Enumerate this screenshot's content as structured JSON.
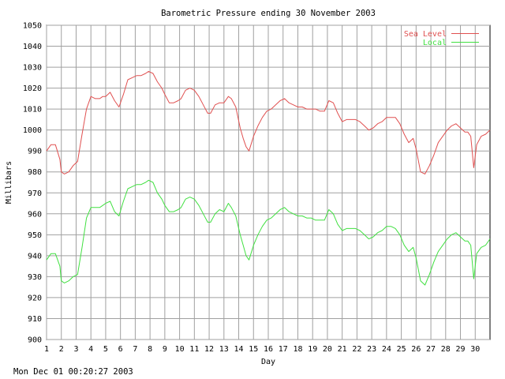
{
  "footer": {
    "timestamp": "Mon Dec 01 00:20:27 2003"
  },
  "chart_data": {
    "type": "line",
    "title": "Barometric Pressure ending 30 November 2003",
    "xlabel": "Day",
    "ylabel": "Millibars",
    "xlim": [
      1,
      31
    ],
    "ylim": [
      900,
      1050
    ],
    "x_ticks": [
      1,
      2,
      3,
      4,
      5,
      6,
      7,
      8,
      9,
      10,
      11,
      12,
      13,
      14,
      15,
      16,
      17,
      18,
      19,
      20,
      21,
      22,
      23,
      24,
      25,
      26,
      27,
      28,
      29,
      30
    ],
    "y_ticks": [
      900,
      910,
      920,
      930,
      940,
      950,
      960,
      970,
      980,
      990,
      1000,
      1010,
      1020,
      1030,
      1040,
      1050
    ],
    "grid": true,
    "legend": "top-right",
    "series": [
      {
        "name": "Sea Level",
        "color": "#e05050",
        "x": [
          1,
          1.3,
          1.6,
          1.9,
          2.0,
          2.2,
          2.5,
          2.8,
          3.1,
          3.4,
          3.7,
          4.0,
          4.3,
          4.6,
          4.8,
          5.0,
          5.3,
          5.6,
          5.9,
          6.2,
          6.5,
          6.8,
          7.1,
          7.4,
          7.7,
          7.9,
          8.2,
          8.5,
          8.8,
          9.0,
          9.3,
          9.6,
          9.9,
          10.1,
          10.4,
          10.7,
          11.0,
          11.3,
          11.6,
          11.9,
          12.1,
          12.4,
          12.7,
          13.0,
          13.3,
          13.5,
          13.8,
          14.1,
          14.3,
          14.5,
          14.7,
          15.0,
          15.3,
          15.6,
          15.9,
          16.2,
          16.5,
          16.8,
          17.1,
          17.4,
          17.7,
          18.0,
          18.3,
          18.6,
          18.9,
          19.2,
          19.5,
          19.8,
          20.1,
          20.4,
          20.7,
          21.0,
          21.3,
          21.6,
          21.9,
          22.2,
          22.5,
          22.8,
          23.1,
          23.4,
          23.7,
          24.0,
          24.3,
          24.6,
          24.9,
          25.2,
          25.5,
          25.8,
          26.0,
          26.3,
          26.6,
          26.9,
          27.2,
          27.5,
          27.8,
          28.1,
          28.4,
          28.7,
          29.0,
          29.3,
          29.5,
          29.7,
          29.9,
          30.1,
          30.4,
          30.7,
          31.0
        ],
        "values": [
          990,
          993,
          993,
          986,
          980,
          979,
          980,
          983,
          985,
          998,
          1010,
          1016,
          1015,
          1015,
          1016,
          1016,
          1018,
          1014,
          1011,
          1017,
          1024,
          1025,
          1026,
          1026,
          1027,
          1028,
          1027,
          1023,
          1020,
          1017,
          1013,
          1013,
          1014,
          1015,
          1019,
          1020,
          1019,
          1016,
          1012,
          1008,
          1008,
          1012,
          1013,
          1013,
          1016,
          1015,
          1011,
          1001,
          996,
          992,
          990,
          997,
          1002,
          1006,
          1009,
          1010,
          1012,
          1014,
          1015,
          1013,
          1012,
          1011,
          1011,
          1010,
          1010,
          1010,
          1009,
          1009,
          1014,
          1013,
          1008,
          1004,
          1005,
          1005,
          1005,
          1004,
          1002,
          1000,
          1001,
          1003,
          1004,
          1006,
          1006,
          1006,
          1003,
          998,
          994,
          996,
          991,
          980,
          979,
          983,
          988,
          994,
          997,
          1000,
          1002,
          1003,
          1001,
          999,
          999,
          997,
          982,
          993,
          997,
          998,
          1000
        ]
      },
      {
        "name": "Local",
        "color": "#40e040",
        "x": [
          1,
          1.3,
          1.6,
          1.9,
          2.0,
          2.2,
          2.5,
          2.8,
          3.1,
          3.4,
          3.7,
          4.0,
          4.3,
          4.6,
          4.8,
          5.0,
          5.3,
          5.6,
          5.9,
          6.2,
          6.5,
          6.8,
          7.1,
          7.4,
          7.7,
          7.9,
          8.2,
          8.5,
          8.8,
          9.0,
          9.3,
          9.6,
          9.9,
          10.1,
          10.4,
          10.7,
          11.0,
          11.3,
          11.6,
          11.9,
          12.1,
          12.4,
          12.7,
          13.0,
          13.3,
          13.5,
          13.8,
          14.1,
          14.3,
          14.5,
          14.7,
          15.0,
          15.3,
          15.6,
          15.9,
          16.2,
          16.5,
          16.8,
          17.1,
          17.4,
          17.7,
          18.0,
          18.3,
          18.6,
          18.9,
          19.2,
          19.5,
          19.8,
          20.1,
          20.4,
          20.7,
          21.0,
          21.3,
          21.6,
          21.9,
          22.2,
          22.5,
          22.8,
          23.1,
          23.4,
          23.7,
          24.0,
          24.3,
          24.6,
          24.9,
          25.2,
          25.5,
          25.8,
          26.0,
          26.3,
          26.6,
          26.9,
          27.2,
          27.5,
          27.8,
          28.1,
          28.4,
          28.7,
          29.0,
          29.3,
          29.5,
          29.7,
          29.9,
          30.1,
          30.4,
          30.7,
          31.0
        ],
        "values": [
          938,
          941,
          941,
          935,
          928,
          927,
          928,
          930,
          931,
          944,
          958,
          963,
          963,
          963,
          964,
          965,
          966,
          961,
          959,
          966,
          972,
          973,
          974,
          974,
          975,
          976,
          975,
          970,
          967,
          964,
          961,
          961,
          962,
          963,
          967,
          968,
          967,
          964,
          960,
          956,
          956,
          960,
          962,
          961,
          965,
          963,
          959,
          950,
          945,
          940,
          938,
          945,
          950,
          954,
          957,
          958,
          960,
          962,
          963,
          961,
          960,
          959,
          959,
          958,
          958,
          957,
          957,
          957,
          962,
          960,
          955,
          952,
          953,
          953,
          953,
          952,
          950,
          948,
          949,
          951,
          952,
          954,
          954,
          953,
          950,
          945,
          942,
          944,
          939,
          928,
          926,
          931,
          937,
          942,
          945,
          948,
          950,
          951,
          949,
          947,
          947,
          945,
          929,
          941,
          944,
          945,
          948
        ]
      }
    ]
  }
}
